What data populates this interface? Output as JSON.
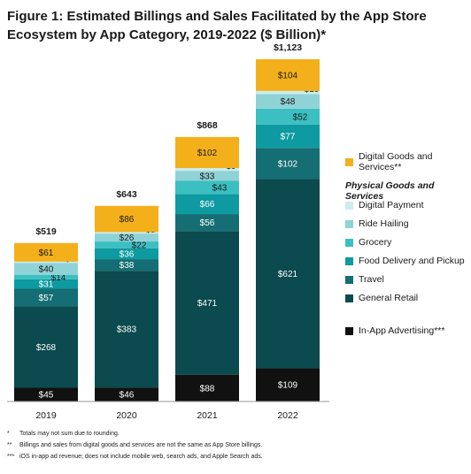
{
  "title": "Figure 1: Estimated Billings and Sales Facilitated by the App Store Ecosystem by App Category, 2019-2022 ($ Billion)*",
  "chart_data": {
    "type": "bar",
    "stacked": true,
    "categories": [
      "2019",
      "2020",
      "2021",
      "2022"
    ],
    "totals": [
      "$519",
      "$643",
      "$868",
      "$1,123"
    ],
    "series": [
      {
        "name": "In-App Advertising***",
        "color": "#111111",
        "values": [
          45,
          46,
          88,
          109
        ],
        "labels": [
          "$45",
          "$46",
          "$88",
          "$109"
        ]
      },
      {
        "name": "General Retail",
        "color": "#0b4a4e",
        "values": [
          268,
          383,
          471,
          621
        ],
        "labels": [
          "$268",
          "$383",
          "$471",
          "$621"
        ]
      },
      {
        "name": "Travel",
        "color": "#146e73",
        "values": [
          57,
          38,
          56,
          102
        ],
        "labels": [
          "$57",
          "$38",
          "$56",
          "$102"
        ]
      },
      {
        "name": "Food Delivery and Pickup",
        "color": "#0d9aa0",
        "values": [
          31,
          36,
          66,
          77
        ],
        "labels": [
          "$31",
          "$36",
          "$66",
          "$77"
        ]
      },
      {
        "name": "Grocery",
        "color": "#3bbfc2",
        "values": [
          14,
          22,
          43,
          52
        ],
        "labels": [
          "$14",
          "$22",
          "$43",
          "$52"
        ]
      },
      {
        "name": "Ride Hailing",
        "color": "#8fd3d6",
        "values": [
          40,
          26,
          33,
          48
        ],
        "labels": [
          "$40",
          "$26",
          "$33",
          "$48"
        ]
      },
      {
        "name": "Digital Payment",
        "color": "#cdeced",
        "values": [
          4,
          5,
          9,
          10
        ],
        "labels": [
          "$4",
          "$5",
          "$9",
          "$10"
        ]
      },
      {
        "name": "Digital Goods and Services**",
        "color": "#f3b01b",
        "values": [
          61,
          86,
          102,
          104
        ],
        "labels": [
          "$61",
          "$86",
          "$102",
          "$104"
        ]
      }
    ],
    "legend_group_header": "Physical Goods and Services",
    "legend_placement": "right",
    "grid": false
  },
  "footnotes": [
    {
      "mark": "*",
      "text": "Totals may not sum due to rounding."
    },
    {
      "mark": "**",
      "text": "Billings and sales from digital goods and services are not the same as App Store billings."
    },
    {
      "mark": "***",
      "text": "iOS in-app ad revenue; does not include mobile web, search ads, and Apple Search ads."
    }
  ]
}
